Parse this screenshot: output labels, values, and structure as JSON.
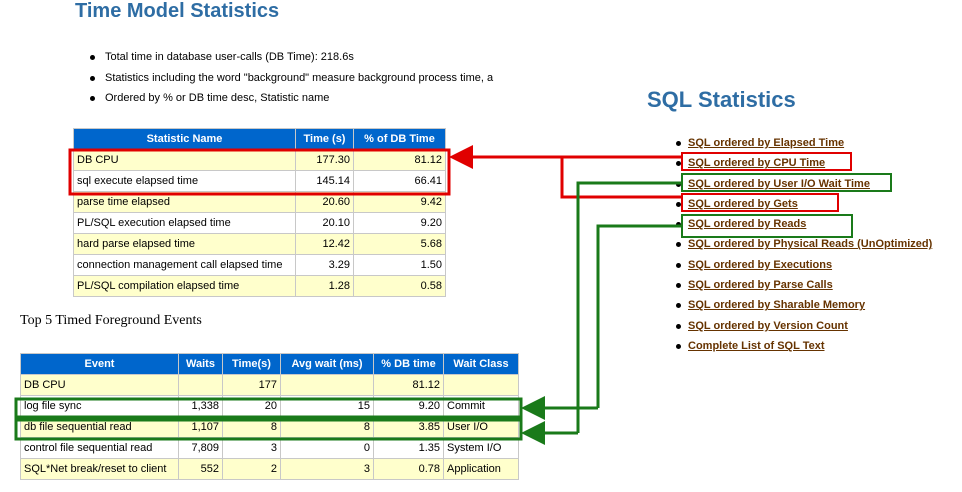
{
  "header": {
    "title": "Time Model Statistics"
  },
  "bullets": [
    "Total time in database user-calls (DB Time): 218.6s",
    "Statistics including the word \"background\" measure background process time, a",
    "Ordered by % or DB time desc, Statistic name"
  ],
  "time_model_table": {
    "columns": [
      "Statistic Name",
      "Time (s)",
      "% of DB Time"
    ],
    "rows": [
      [
        "DB CPU",
        "177.30",
        "81.12"
      ],
      [
        "sql execute elapsed time",
        "145.14",
        "66.41"
      ],
      [
        "parse time elapsed",
        "20.60",
        "9.42"
      ],
      [
        "PL/SQL execution elapsed time",
        "20.10",
        "9.20"
      ],
      [
        "hard parse elapsed time",
        "12.42",
        "5.68"
      ],
      [
        "connection management call elapsed time",
        "3.29",
        "1.50"
      ],
      [
        "PL/SQL compilation elapsed time",
        "1.28",
        "0.58"
      ]
    ]
  },
  "events_table": {
    "title": "Top 5 Timed Foreground Events",
    "columns": [
      "Event",
      "Waits",
      "Time(s)",
      "Avg wait (ms)",
      "% DB time",
      "Wait Class"
    ],
    "rows": [
      [
        "DB CPU",
        null,
        "177",
        null,
        "81.12",
        null
      ],
      [
        "log file sync",
        "1,338",
        "20",
        "15",
        "9.20",
        "Commit"
      ],
      [
        "db file sequential read",
        "1,107",
        "8",
        "8",
        "3.85",
        "User I/O"
      ],
      [
        "control file sequential read",
        "7,809",
        "3",
        "0",
        "1.35",
        "System I/O"
      ],
      [
        "SQL*Net break/reset to client",
        "552",
        "2",
        "3",
        "0.78",
        "Application"
      ]
    ]
  },
  "sql_statistics": {
    "title": "SQL Statistics",
    "links": [
      "SQL ordered by Elapsed Time",
      "SQL ordered by CPU Time",
      "SQL ordered by User I/O Wait Time",
      "SQL ordered by Gets",
      "SQL ordered by Reads",
      "SQL ordered by Physical Reads (UnOptimized)",
      "SQL ordered by Executions",
      "SQL ordered by Parse Calls",
      "SQL ordered by Sharable Memory",
      "SQL ordered by Version Count",
      "Complete List of SQL Text"
    ]
  }
}
